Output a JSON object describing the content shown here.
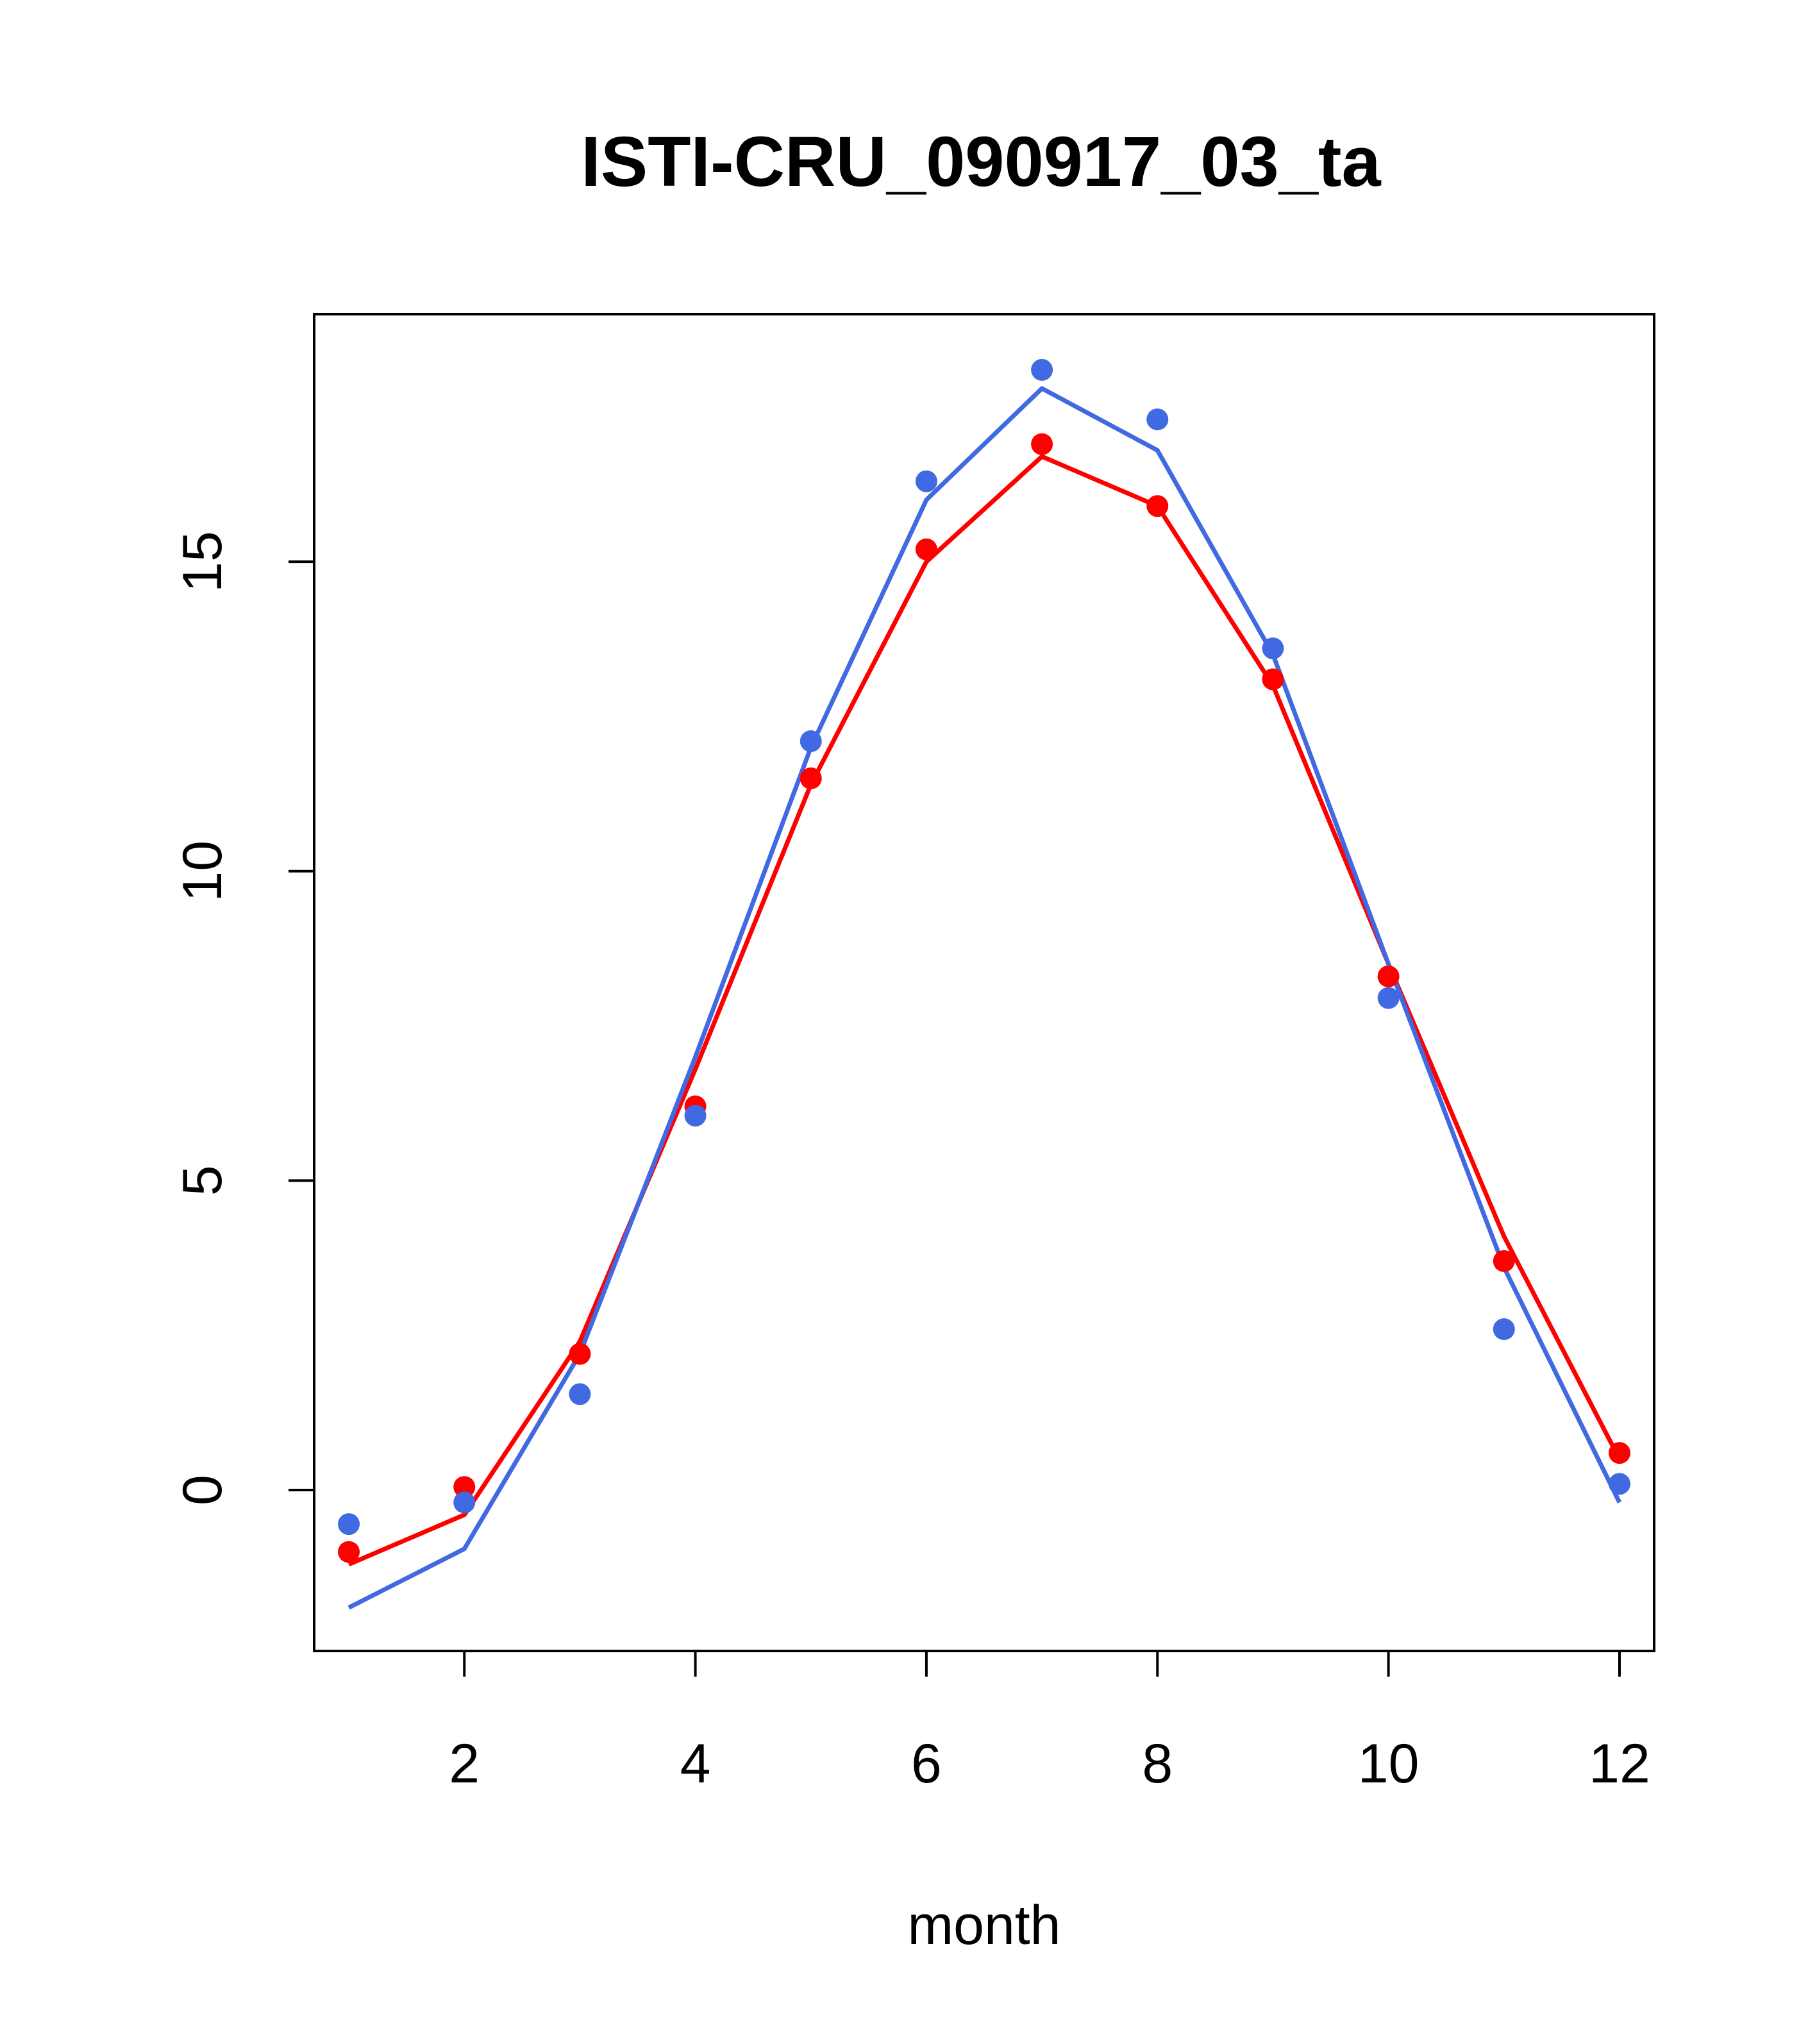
{
  "chart_data": {
    "type": "line",
    "title": "ISTI-CRU_090917_03_ta",
    "xlabel": "month",
    "ylabel": "",
    "xlim": [
      0.7,
      12.3
    ],
    "ylim": [
      -2.6,
      19.0
    ],
    "x_ticks": [
      2,
      4,
      6,
      8,
      10,
      12
    ],
    "y_ticks": [
      0,
      5,
      10,
      15
    ],
    "grid": false,
    "legend": "none",
    "x": [
      1,
      2,
      3,
      4,
      5,
      6,
      7,
      8,
      9,
      10,
      11,
      12
    ],
    "series": [
      {
        "color": "#ff0000",
        "line": [
          -1.2,
          -0.4,
          2.4,
          6.8,
          11.4,
          15.0,
          16.7,
          15.9,
          13.0,
          8.5,
          4.1,
          0.5
        ],
        "points": [
          -1.0,
          0.05,
          2.2,
          6.2,
          11.5,
          15.2,
          16.9,
          15.9,
          13.1,
          8.3,
          3.7,
          0.6
        ]
      },
      {
        "color": "#4169e1",
        "line": [
          -1.9,
          -0.95,
          2.2,
          7.0,
          12.0,
          16.0,
          17.8,
          16.8,
          13.5,
          8.5,
          3.6,
          -0.2
        ],
        "points": [
          -0.55,
          -0.2,
          1.55,
          6.05,
          12.1,
          16.3,
          18.1,
          17.3,
          13.6,
          7.95,
          2.6,
          0.1
        ]
      }
    ]
  }
}
